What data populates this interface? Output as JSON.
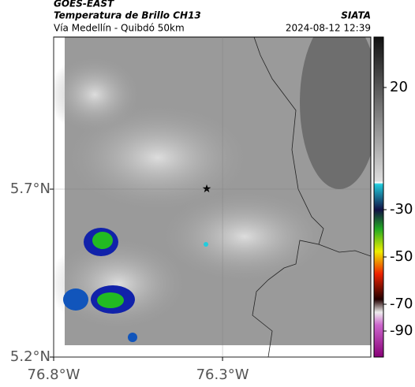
{
  "header": {
    "satellite": "GOES-EAST",
    "product": "Temperatura de Brillo CH13",
    "source": "SIATA",
    "location": "Vía Medellín - Quibdó 50km",
    "datetime": "2024-08-12 12:39"
  },
  "map": {
    "latlim": [
      5.2,
      6.153
    ],
    "lonlim": [
      -76.8,
      -75.861
    ],
    "lat_ticks": [
      {
        "value": 5.7,
        "label": "5.7°N"
      },
      {
        "value": 5.2,
        "label": "5.2°N"
      }
    ],
    "lon_ticks": [
      {
        "value": -76.8,
        "label": "76.8°W"
      },
      {
        "value": -76.3,
        "label": "76.3°W"
      }
    ]
  },
  "colorbar": {
    "ticks": [
      20,
      -30,
      -50,
      -70,
      -90
    ]
  }
}
